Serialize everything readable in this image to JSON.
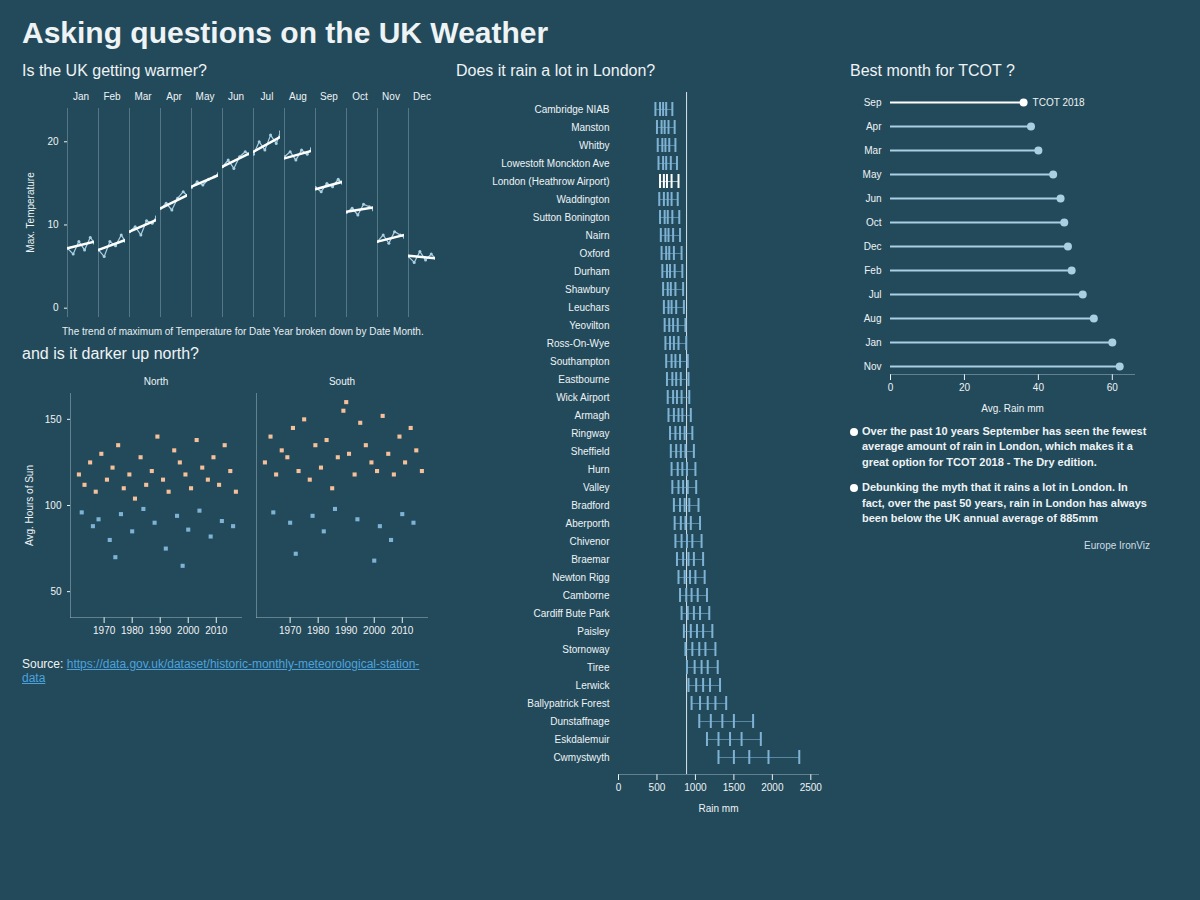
{
  "title": "Asking questions on the UK Weather",
  "source_label": "Source:",
  "source_url": "https://data.gov.uk/dataset/historic-monthly-meteorological-station-data",
  "credit": "Europe IronViz",
  "chart_data": [
    {
      "type": "line",
      "title": "Is the UK getting warmer?",
      "caption": "The trend of maximum of Temperature for Date Year broken down by Date Month.",
      "categories": [
        "Jan",
        "Feb",
        "Mar",
        "Apr",
        "May",
        "Jun",
        "Jul",
        "Aug",
        "Sep",
        "Oct",
        "Nov",
        "Dec"
      ],
      "x": [
        1960,
        1972,
        1984,
        1996,
        2008,
        2017
      ],
      "values": [
        [
          7.2,
          6.5,
          8.0,
          7.0,
          8.5,
          7.8
        ],
        [
          7.0,
          6.2,
          8.0,
          7.5,
          8.8,
          8.0
        ],
        [
          9.2,
          9.8,
          8.8,
          10.5,
          10.2,
          11.0
        ],
        [
          12.0,
          12.6,
          11.8,
          13.2,
          14.0,
          13.5
        ],
        [
          14.5,
          15.2,
          14.8,
          15.5,
          15.8,
          16.2
        ],
        [
          17.0,
          17.8,
          16.8,
          18.2,
          18.8,
          18.5
        ],
        [
          18.5,
          20.0,
          19.0,
          20.8,
          19.8,
          21.2
        ],
        [
          18.2,
          18.8,
          17.8,
          19.0,
          18.5,
          19.2
        ],
        [
          14.5,
          14.0,
          15.0,
          14.6,
          15.5,
          15.0
        ],
        [
          11.5,
          12.0,
          11.2,
          12.5,
          12.2,
          11.8
        ],
        [
          8.0,
          8.8,
          7.8,
          9.2,
          8.8,
          8.5
        ],
        [
          6.2,
          5.5,
          6.8,
          5.8,
          6.5,
          6.0
        ]
      ],
      "trend": [
        [
          7.2,
          8.0
        ],
        [
          7.0,
          8.2
        ],
        [
          9.2,
          10.6
        ],
        [
          12.0,
          13.6
        ],
        [
          14.6,
          16.0
        ],
        [
          17.0,
          18.6
        ],
        [
          18.8,
          20.6
        ],
        [
          18.0,
          18.9
        ],
        [
          14.3,
          15.2
        ],
        [
          11.6,
          12.1
        ],
        [
          8.0,
          8.8
        ],
        [
          6.3,
          6.0
        ]
      ],
      "color": "#a9cfe3",
      "trend_color": "#ffffff",
      "ylabel": "Max. Temperature",
      "ylim": [
        -1,
        24
      ],
      "yticks": [
        0,
        10,
        20
      ]
    },
    {
      "type": "scatter",
      "title": "and is it darker up north?",
      "ylabel": "Avg. Hours of Sun",
      "ylim": [
        35,
        165
      ],
      "yticks": [
        50,
        100,
        150
      ],
      "xlim": [
        1958,
        2019
      ],
      "xticks": [
        1970,
        1980,
        1990,
        2000,
        2010
      ],
      "panels": [
        {
          "name": "North",
          "series": [
            {
              "color": "#f6c09a",
              "points": [
                [
                  1961,
                  118
                ],
                [
                  1963,
                  112
                ],
                [
                  1965,
                  125
                ],
                [
                  1967,
                  108
                ],
                [
                  1969,
                  130
                ],
                [
                  1971,
                  115
                ],
                [
                  1973,
                  122
                ],
                [
                  1975,
                  135
                ],
                [
                  1977,
                  110
                ],
                [
                  1979,
                  118
                ],
                [
                  1981,
                  104
                ],
                [
                  1983,
                  128
                ],
                [
                  1985,
                  112
                ],
                [
                  1987,
                  120
                ],
                [
                  1989,
                  140
                ],
                [
                  1991,
                  115
                ],
                [
                  1993,
                  108
                ],
                [
                  1995,
                  132
                ],
                [
                  1997,
                  125
                ],
                [
                  1999,
                  118
                ],
                [
                  2001,
                  110
                ],
                [
                  2003,
                  138
                ],
                [
                  2005,
                  122
                ],
                [
                  2007,
                  115
                ],
                [
                  2009,
                  128
                ],
                [
                  2011,
                  112
                ],
                [
                  2013,
                  135
                ],
                [
                  2015,
                  120
                ],
                [
                  2017,
                  108
                ]
              ]
            },
            {
              "color": "#7fb3d5",
              "points": [
                [
                  1962,
                  96
                ],
                [
                  1966,
                  88
                ],
                [
                  1968,
                  92
                ],
                [
                  1972,
                  80
                ],
                [
                  1974,
                  70
                ],
                [
                  1976,
                  95
                ],
                [
                  1980,
                  85
                ],
                [
                  1984,
                  98
                ],
                [
                  1988,
                  90
                ],
                [
                  1992,
                  75
                ],
                [
                  1996,
                  94
                ],
                [
                  1998,
                  65
                ],
                [
                  2000,
                  86
                ],
                [
                  2004,
                  97
                ],
                [
                  2008,
                  82
                ],
                [
                  2012,
                  91
                ],
                [
                  2016,
                  88
                ]
              ]
            }
          ]
        },
        {
          "name": "South",
          "series": [
            {
              "color": "#f6c09a",
              "points": [
                [
                  1961,
                  125
                ],
                [
                  1963,
                  140
                ],
                [
                  1965,
                  118
                ],
                [
                  1967,
                  132
                ],
                [
                  1969,
                  128
                ],
                [
                  1971,
                  145
                ],
                [
                  1973,
                  120
                ],
                [
                  1975,
                  150
                ],
                [
                  1977,
                  115
                ],
                [
                  1979,
                  135
                ],
                [
                  1981,
                  122
                ],
                [
                  1983,
                  138
                ],
                [
                  1985,
                  110
                ],
                [
                  1987,
                  128
                ],
                [
                  1989,
                  155
                ],
                [
                  1990,
                  160
                ],
                [
                  1991,
                  130
                ],
                [
                  1993,
                  118
                ],
                [
                  1995,
                  148
                ],
                [
                  1997,
                  135
                ],
                [
                  1999,
                  125
                ],
                [
                  2001,
                  120
                ],
                [
                  2003,
                  152
                ],
                [
                  2005,
                  130
                ],
                [
                  2007,
                  118
                ],
                [
                  2009,
                  140
                ],
                [
                  2011,
                  125
                ],
                [
                  2013,
                  145
                ],
                [
                  2015,
                  132
                ],
                [
                  2017,
                  120
                ]
              ]
            },
            {
              "color": "#7fb3d5",
              "points": [
                [
                  1964,
                  96
                ],
                [
                  1970,
                  90
                ],
                [
                  1972,
                  72
                ],
                [
                  1978,
                  94
                ],
                [
                  1982,
                  85
                ],
                [
                  1986,
                  98
                ],
                [
                  1994,
                  92
                ],
                [
                  2000,
                  68
                ],
                [
                  2002,
                  88
                ],
                [
                  2006,
                  80
                ],
                [
                  2010,
                  95
                ],
                [
                  2014,
                  90
                ]
              ]
            }
          ]
        }
      ]
    },
    {
      "type": "strip",
      "title": "Does it rain a lot in London?",
      "orientation": "horizontal",
      "categories": [
        "Cambridge NIAB",
        "Manston",
        "Whitby",
        "Lowestoft Monckton Ave",
        "London (Heathrow Airport)",
        "Waddington",
        "Sutton Bonington",
        "Nairn",
        "Oxford",
        "Durham",
        "Shawbury",
        "Leuchars",
        "Yeovilton",
        "Ross-On-Wye",
        "Southampton",
        "Eastbourne",
        "Wick Airport",
        "Armagh",
        "Ringway",
        "Sheffield",
        "Hurn",
        "Valley",
        "Bradford",
        "Aberporth",
        "Chivenor",
        "Braemar",
        "Newton Rigg",
        "Camborne",
        "Cardiff Bute Park",
        "Paisley",
        "Stornoway",
        "Tiree",
        "Lerwick",
        "Ballypatrick Forest",
        "Dunstaffnage",
        "Eskdalemuir",
        "Cwmystwyth"
      ],
      "values": [
        [
          480,
          540,
          580,
          620,
          700
        ],
        [
          500,
          560,
          600,
          650,
          730
        ],
        [
          510,
          570,
          610,
          660,
          740
        ],
        [
          520,
          580,
          620,
          680,
          760
        ],
        [
          540,
          590,
          630,
          690,
          780
        ],
        [
          530,
          590,
          640,
          690,
          770
        ],
        [
          540,
          600,
          640,
          700,
          790
        ],
        [
          550,
          610,
          650,
          710,
          800
        ],
        [
          560,
          620,
          660,
          720,
          820
        ],
        [
          570,
          630,
          670,
          730,
          830
        ],
        [
          580,
          640,
          680,
          740,
          840
        ],
        [
          590,
          650,
          690,
          750,
          850
        ],
        [
          600,
          660,
          710,
          770,
          870
        ],
        [
          610,
          670,
          720,
          780,
          880
        ],
        [
          620,
          690,
          740,
          800,
          900
        ],
        [
          630,
          700,
          750,
          810,
          910
        ],
        [
          640,
          710,
          760,
          820,
          920
        ],
        [
          650,
          720,
          780,
          830,
          940
        ],
        [
          670,
          740,
          800,
          860,
          960
        ],
        [
          680,
          750,
          810,
          870,
          980
        ],
        [
          690,
          770,
          830,
          890,
          1000
        ],
        [
          700,
          780,
          840,
          900,
          1010
        ],
        [
          720,
          800,
          860,
          920,
          1040
        ],
        [
          730,
          810,
          870,
          940,
          1060
        ],
        [
          740,
          820,
          890,
          960,
          1080
        ],
        [
          760,
          840,
          910,
          980,
          1100
        ],
        [
          780,
          860,
          930,
          1000,
          1120
        ],
        [
          800,
          880,
          950,
          1030,
          1150
        ],
        [
          820,
          900,
          980,
          1060,
          1180
        ],
        [
          850,
          940,
          1020,
          1100,
          1220
        ],
        [
          870,
          960,
          1050,
          1130,
          1260
        ],
        [
          890,
          990,
          1080,
          1160,
          1290
        ],
        [
          910,
          1010,
          1100,
          1190,
          1320
        ],
        [
          950,
          1060,
          1160,
          1260,
          1400
        ],
        [
          1050,
          1200,
          1350,
          1500,
          1750
        ],
        [
          1150,
          1300,
          1450,
          1600,
          1850
        ],
        [
          1300,
          1500,
          1700,
          1950,
          2350
        ]
      ],
      "colors": [
        "#7fb3d5",
        "#7fb3d5",
        "#7fb3d5",
        "#7fb3d5",
        "#ffffff",
        "#7fb3d5",
        "#7fb3d5",
        "#7fb3d5",
        "#7fb3d5",
        "#7fb3d5",
        "#7fb3d5",
        "#7fb3d5",
        "#7fb3d5",
        "#7fb3d5",
        "#7fb3d5",
        "#7fb3d5",
        "#7fb3d5",
        "#7fb3d5",
        "#7fb3d5",
        "#7fb3d5",
        "#7fb3d5",
        "#7fb3d5",
        "#7fb3d5",
        "#7fb3d5",
        "#7fb3d5",
        "#7fb3d5",
        "#7fb3d5",
        "#7fb3d5",
        "#7fb3d5",
        "#7fb3d5",
        "#7fb3d5",
        "#7fb3d5",
        "#7fb3d5",
        "#7fb3d5",
        "#7fb3d5",
        "#7fb3d5",
        "#7fb3d5"
      ],
      "average": 885,
      "xlabel": "Rain mm",
      "xlim": [
        0,
        2600
      ],
      "xticks": [
        0,
        500,
        1000,
        1500,
        2000,
        2500
      ]
    },
    {
      "type": "lollipop",
      "title": "Best month for TCOT ?",
      "orientation": "horizontal",
      "categories": [
        "Sep",
        "Apr",
        "Mar",
        "May",
        "Jun",
        "Oct",
        "Dec",
        "Feb",
        "Jul",
        "Aug",
        "Jan",
        "Nov"
      ],
      "values": [
        36,
        38,
        40,
        44,
        46,
        47,
        48,
        49,
        52,
        55,
        60,
        62
      ],
      "colors": [
        "#ffffff",
        "#a9cfe3",
        "#a9cfe3",
        "#a9cfe3",
        "#a9cfe3",
        "#a9cfe3",
        "#a9cfe3",
        "#a9cfe3",
        "#a9cfe3",
        "#a9cfe3",
        "#a9cfe3",
        "#a9cfe3"
      ],
      "annotations": [
        {
          "category": "Sep",
          "text": "TCOT 2018"
        }
      ],
      "xlabel": "Avg. Rain mm",
      "xlim": [
        0,
        66
      ],
      "xticks": [
        0,
        20,
        40,
        60
      ],
      "notes": [
        "Over the past 10 years September has seen the fewest average amount of rain in London, which makes it a great option for TCOT 2018 - The Dry edition.",
        "Debunking the myth that it rains a lot in London. In fact, over the past 50 years, rain in London has always been below the UK annual average of 885mm"
      ]
    }
  ]
}
